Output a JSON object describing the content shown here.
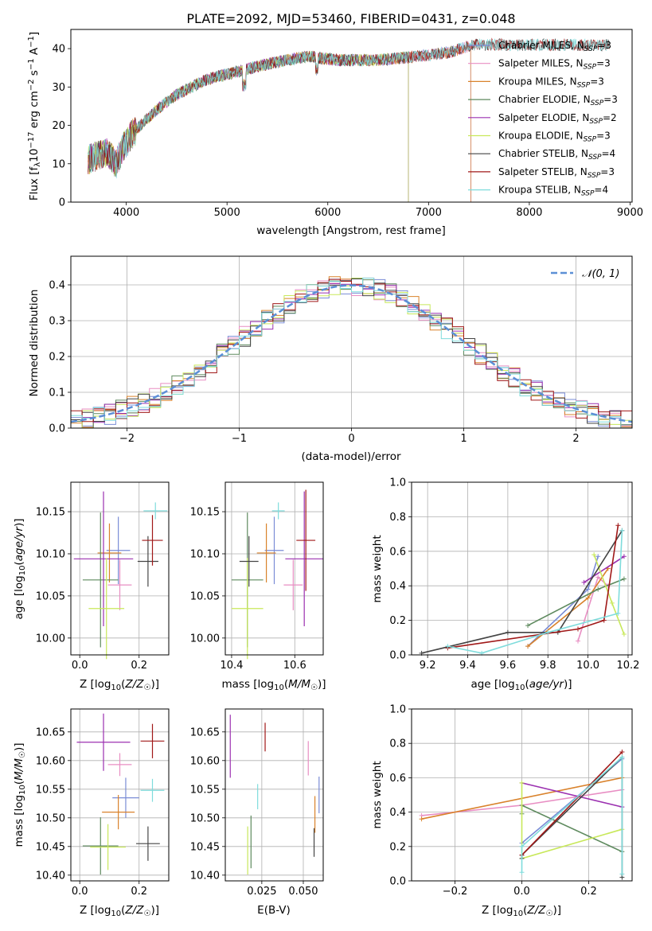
{
  "chart_data": [
    {
      "type": "line",
      "title": "PLATE=2092, MJD=53460, FIBERID=0431, z=0.048",
      "xlabel": "wavelength [Angstrom, rest frame]",
      "ylabel": "Flux [f_λ 10^-17 erg cm^-2 s^-1 A^-1]",
      "xlim": [
        3450,
        9020
      ],
      "ylim": [
        0,
        45
      ],
      "xticks": [
        4000,
        5000,
        6000,
        7000,
        8000,
        9000
      ],
      "yticks": [
        0,
        10,
        20,
        30,
        40
      ],
      "grid": false,
      "legend_position": "top-right",
      "continuum_x": [
        3620,
        3800,
        3900,
        3980,
        4100,
        4300,
        4500,
        4800,
        5100,
        5400,
        5800,
        6100,
        6500,
        6900,
        7200,
        7450
      ],
      "continuum_y": [
        11,
        13,
        10,
        15,
        19,
        24,
        28,
        32,
        34,
        36,
        38,
        37,
        37,
        38,
        39,
        41
      ],
      "series": [
        {
          "name": "Chabrier MILES, N_SSP=3",
          "color": "#7a8cd6",
          "x_end": 7420
        },
        {
          "name": "Salpeter MILES, N_SSP=3",
          "color": "#e88ec3",
          "x_end": 7420
        },
        {
          "name": "Kroupa MILES, N_SSP=3",
          "color": "#d9822b",
          "x_end": 7420
        },
        {
          "name": "Chabrier ELODIE, N_SSP=3",
          "color": "#5e8a5e",
          "x_end": 6800
        },
        {
          "name": "Salpeter ELODIE, N_SSP=2",
          "color": "#9b30b0",
          "x_end": 6800
        },
        {
          "name": "Kroupa ELODIE, N_SSP=3",
          "color": "#c8e85a",
          "x_end": 6800
        },
        {
          "name": "Chabrier STELIB, N_SSP=4",
          "color": "#444444",
          "x_end": 8800
        },
        {
          "name": "Salpeter STELIB, N_SSP=3",
          "color": "#a01818",
          "x_end": 8800
        },
        {
          "name": "Kroupa STELIB, N_SSP=4",
          "color": "#7fdcdc",
          "x_end": 8800
        }
      ]
    },
    {
      "type": "step",
      "xlabel": "(data-model)/error",
      "ylabel": "Normed distribution",
      "xlim": [
        -2.5,
        2.5
      ],
      "ylim": [
        0,
        0.48
      ],
      "xticks": [
        -2,
        -1,
        0,
        1,
        2
      ],
      "yticks": [
        0.0,
        0.1,
        0.2,
        0.3,
        0.4
      ],
      "grid": true,
      "legend_position": "top-right",
      "legend_label": "𝒩(0, 1)",
      "normal_curve_color": "#5b8fd6",
      "histogram_colors": [
        "#7a8cd6",
        "#e88ec3",
        "#d9822b",
        "#5e8a5e",
        "#9b30b0",
        "#c8e85a",
        "#444444",
        "#a01818",
        "#7fdcdc"
      ]
    },
    {
      "type": "errorbar",
      "xlabel": "Z [log10(Z/Z☉)]",
      "ylabel": "age  [log10(age/yr)]",
      "xlim": [
        -0.03,
        0.3
      ],
      "ylim": [
        9.98,
        10.185
      ],
      "xticks": [
        0.0,
        0.2
      ],
      "yticks": [
        10.0,
        10.05,
        10.1,
        10.15
      ],
      "grid": true,
      "points": [
        {
          "x": 0.13,
          "y": 10.104,
          "xerr": 0.04,
          "yerr": 0.04,
          "color": "#7a8cd6"
        },
        {
          "x": 0.135,
          "y": 10.063,
          "xerr": 0.04,
          "yerr": 0.03,
          "color": "#e88ec3"
        },
        {
          "x": 0.1,
          "y": 10.101,
          "xerr": 0.04,
          "yerr": 0.035,
          "color": "#d9822b"
        },
        {
          "x": 0.07,
          "y": 10.069,
          "xerr": 0.06,
          "yerr": 0.08,
          "color": "#5e8a5e"
        },
        {
          "x": 0.08,
          "y": 10.094,
          "xerr": 0.1,
          "yerr": 0.08,
          "color": "#9b30b0"
        },
        {
          "x": 0.09,
          "y": 10.035,
          "xerr": 0.06,
          "yerr": 0.06,
          "color": "#c8e85a"
        },
        {
          "x": 0.23,
          "y": 10.091,
          "xerr": 0.035,
          "yerr": 0.03,
          "color": "#444444"
        },
        {
          "x": 0.245,
          "y": 10.116,
          "xerr": 0.035,
          "yerr": 0.03,
          "color": "#a01818"
        },
        {
          "x": 0.255,
          "y": 10.151,
          "xerr": 0.04,
          "yerr": 0.01,
          "color": "#7fdcdc"
        }
      ]
    },
    {
      "type": "errorbar",
      "xlabel": "mass [log10(M/M☉)]",
      "ylabel": "",
      "xlim": [
        10.38,
        10.69
      ],
      "ylim": [
        9.98,
        10.185
      ],
      "xticks": [
        10.4,
        10.6
      ],
      "yticks": [
        10.0,
        10.05,
        10.1,
        10.15
      ],
      "grid": true,
      "points": [
        {
          "x": 10.535,
          "y": 10.104,
          "xerr": 0.03,
          "yerr": 0.04,
          "color": "#7a8cd6"
        },
        {
          "x": 10.595,
          "y": 10.063,
          "xerr": 0.03,
          "yerr": 0.03,
          "color": "#e88ec3"
        },
        {
          "x": 10.51,
          "y": 10.101,
          "xerr": 0.03,
          "yerr": 0.035,
          "color": "#d9822b"
        },
        {
          "x": 10.45,
          "y": 10.069,
          "xerr": 0.05,
          "yerr": 0.08,
          "color": "#5e8a5e"
        },
        {
          "x": 10.63,
          "y": 10.094,
          "xerr": 0.06,
          "yerr": 0.08,
          "color": "#9b30b0"
        },
        {
          "x": 10.45,
          "y": 10.035,
          "xerr": 0.05,
          "yerr": 0.06,
          "color": "#c8e85a"
        },
        {
          "x": 10.455,
          "y": 10.091,
          "xerr": 0.03,
          "yerr": 0.03,
          "color": "#444444"
        },
        {
          "x": 10.635,
          "y": 10.116,
          "xerr": 0.03,
          "yerr": 0.06,
          "color": "#a01818"
        },
        {
          "x": 10.548,
          "y": 10.151,
          "xerr": 0.02,
          "yerr": 0.01,
          "color": "#7fdcdc"
        }
      ]
    },
    {
      "type": "line",
      "xlabel": "age  [log10(age/yr)]",
      "ylabel": "mass weight",
      "xlim": [
        9.12,
        10.22
      ],
      "ylim": [
        0.0,
        1.0
      ],
      "xticks": [
        9.2,
        9.4,
        9.6,
        9.8,
        10.0,
        10.2
      ],
      "yticks": [
        0.0,
        0.2,
        0.4,
        0.6,
        0.8,
        1.0
      ],
      "grid": true,
      "series": [
        {
          "color": "#7a8cd6",
          "x": [
            9.7,
            10.0,
            10.05
          ],
          "y": [
            0.05,
            0.38,
            0.57
          ]
        },
        {
          "color": "#e88ec3",
          "x": [
            9.95,
            10.05,
            10.1
          ],
          "y": [
            0.08,
            0.45,
            0.4
          ]
        },
        {
          "color": "#d9822b",
          "x": [
            9.7,
            10.0,
            10.1
          ],
          "y": [
            0.05,
            0.33,
            0.5
          ]
        },
        {
          "color": "#5e8a5e",
          "x": [
            9.7,
            10.05,
            10.18
          ],
          "y": [
            0.17,
            0.38,
            0.44
          ]
        },
        {
          "color": "#9b30b0",
          "x": [
            9.98,
            10.18
          ],
          "y": [
            0.42,
            0.57
          ]
        },
        {
          "color": "#c8e85a",
          "x": [
            10.03,
            10.12,
            10.18
          ],
          "y": [
            0.58,
            0.3,
            0.12
          ]
        },
        {
          "color": "#444444",
          "x": [
            9.17,
            9.6,
            9.85,
            10.17
          ],
          "y": [
            0.01,
            0.13,
            0.13,
            0.72
          ]
        },
        {
          "color": "#a01818",
          "x": [
            9.3,
            9.95,
            10.08,
            10.15
          ],
          "y": [
            0.04,
            0.15,
            0.2,
            0.75
          ]
        },
        {
          "color": "#7fdcdc",
          "x": [
            9.3,
            9.47,
            9.8,
            10.15,
            10.17
          ],
          "y": [
            0.05,
            0.01,
            0.13,
            0.24,
            0.72
          ]
        }
      ]
    },
    {
      "type": "errorbar",
      "xlabel": "Z [log10(Z/Z☉)]",
      "ylabel": "mass [log10(M/M☉)]",
      "xlim": [
        -0.03,
        0.3
      ],
      "ylim": [
        10.39,
        10.69
      ],
      "xticks": [
        0.0,
        0.2
      ],
      "yticks": [
        10.4,
        10.45,
        10.5,
        10.55,
        10.6,
        10.65
      ],
      "grid": true,
      "points": [
        {
          "x": 0.155,
          "y": 10.535,
          "xerr": 0.045,
          "yerr": 0.035,
          "color": "#7a8cd6"
        },
        {
          "x": 0.135,
          "y": 10.593,
          "xerr": 0.04,
          "yerr": 0.02,
          "color": "#e88ec3"
        },
        {
          "x": 0.13,
          "y": 10.51,
          "xerr": 0.055,
          "yerr": 0.03,
          "color": "#d9822b"
        },
        {
          "x": 0.07,
          "y": 10.451,
          "xerr": 0.06,
          "yerr": 0.05,
          "color": "#5e8a5e"
        },
        {
          "x": 0.08,
          "y": 10.632,
          "xerr": 0.09,
          "yerr": 0.05,
          "color": "#9b30b0"
        },
        {
          "x": 0.095,
          "y": 10.449,
          "xerr": 0.06,
          "yerr": 0.04,
          "color": "#c8e85a"
        },
        {
          "x": 0.23,
          "y": 10.455,
          "xerr": 0.04,
          "yerr": 0.03,
          "color": "#444444"
        },
        {
          "x": 0.245,
          "y": 10.634,
          "xerr": 0.04,
          "yerr": 0.03,
          "color": "#a01818"
        },
        {
          "x": 0.245,
          "y": 10.548,
          "xerr": 0.04,
          "yerr": 0.02,
          "color": "#7fdcdc"
        }
      ]
    },
    {
      "type": "errorbar",
      "xlabel": "E(B-V)",
      "ylabel": "",
      "xlim": [
        0.003,
        0.062
      ],
      "ylim": [
        10.39,
        10.69
      ],
      "xticks": [
        0.025,
        0.05
      ],
      "yticks": [
        10.4,
        10.45,
        10.5,
        10.55,
        10.6,
        10.65
      ],
      "grid": true,
      "points": [
        {
          "x": 0.0595,
          "y": 10.54,
          "xerr": 0,
          "yerr": 0.032,
          "color": "#7a8cd6"
        },
        {
          "x": 0.053,
          "y": 10.604,
          "xerr": 0,
          "yerr": 0.03,
          "color": "#e88ec3"
        },
        {
          "x": 0.057,
          "y": 10.506,
          "xerr": 0,
          "yerr": 0.032,
          "color": "#d9822b"
        },
        {
          "x": 0.0185,
          "y": 10.458,
          "xerr": 0,
          "yerr": 0.046,
          "color": "#5e8a5e"
        },
        {
          "x": 0.006,
          "y": 10.625,
          "xerr": 0,
          "yerr": 0.055,
          "color": "#9b30b0"
        },
        {
          "x": 0.0165,
          "y": 10.443,
          "xerr": 0,
          "yerr": 0.042,
          "color": "#c8e85a"
        },
        {
          "x": 0.0565,
          "y": 10.457,
          "xerr": 0,
          "yerr": 0.025,
          "color": "#444444"
        },
        {
          "x": 0.027,
          "y": 10.641,
          "xerr": 0,
          "yerr": 0.025,
          "color": "#a01818"
        },
        {
          "x": 0.0225,
          "y": 10.537,
          "xerr": 0,
          "yerr": 0.022,
          "color": "#7fdcdc"
        }
      ]
    },
    {
      "type": "line",
      "xlabel": "Z [log10(Z/Z☉)]",
      "ylabel": "mass weight",
      "xlim": [
        -0.33,
        0.33
      ],
      "ylim": [
        0.0,
        1.0
      ],
      "xticks": [
        -0.2,
        0.0,
        0.2
      ],
      "yticks": [
        0.0,
        0.2,
        0.4,
        0.6,
        0.8,
        1.0
      ],
      "grid": true,
      "series": [
        {
          "color": "#7a8cd6",
          "x": [
            0.0,
            0.3
          ],
          "y": [
            0.22,
            0.71
          ]
        },
        {
          "color": "#e88ec3",
          "x": [
            -0.3,
            0.0,
            0.3
          ],
          "y": [
            0.38,
            0.44,
            0.53
          ]
        },
        {
          "color": "#d9822b",
          "x": [
            -0.3,
            0.3
          ],
          "y": [
            0.36,
            0.6
          ]
        },
        {
          "color": "#5e8a5e",
          "x": [
            0.0,
            0.0,
            0.3
          ],
          "y": [
            0.39,
            0.44,
            0.17
          ]
        },
        {
          "color": "#9b30b0",
          "x": [
            0.0,
            0.3
          ],
          "y": [
            0.57,
            0.43
          ]
        },
        {
          "color": "#c8e85a",
          "x": [
            0.0,
            0.0,
            0.3
          ],
          "y": [
            0.57,
            0.13,
            0.3
          ]
        },
        {
          "color": "#444444",
          "x": [
            0.0,
            0.0,
            0.3,
            0.3
          ],
          "y": [
            0.13,
            0.15,
            0.72,
            0.02
          ]
        },
        {
          "color": "#a01818",
          "x": [
            0.0,
            0.3
          ],
          "y": [
            0.15,
            0.75
          ]
        },
        {
          "color": "#7fdcdc",
          "x": [
            0.0,
            0.0,
            0.3,
            0.3
          ],
          "y": [
            0.05,
            0.2,
            0.72,
            0.04
          ]
        }
      ]
    }
  ]
}
